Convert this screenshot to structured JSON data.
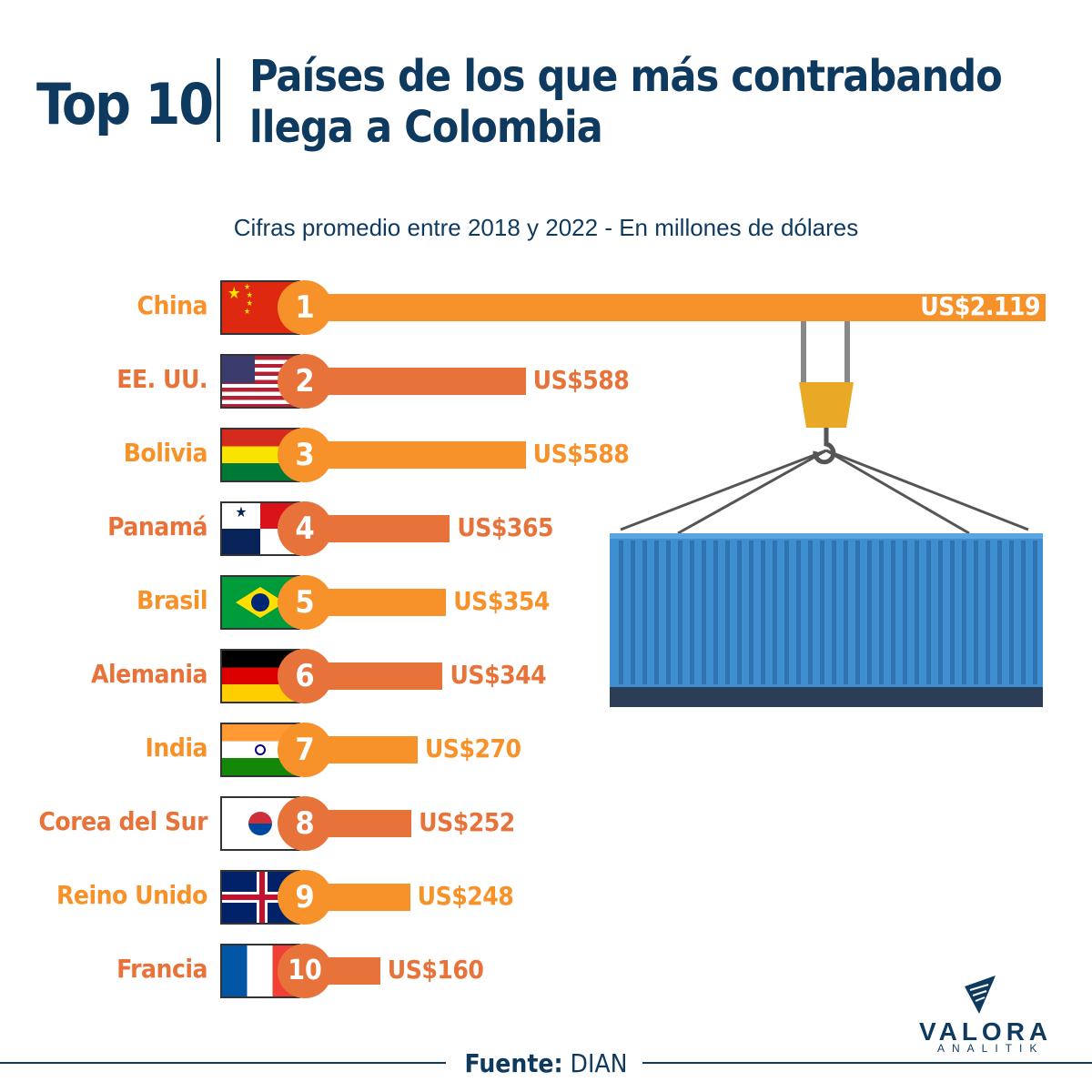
{
  "header": {
    "top": "Top 10",
    "title_line1": "Países de los que más contrabando",
    "title_line2": "llega a Colombia"
  },
  "chart_data": {
    "type": "bar",
    "orientation": "horizontal",
    "subtitle": "Cifras promedio entre 2018 y 2022 - En millones de dólares",
    "categories": [
      "China",
      "EE. UU.",
      "Bolivia",
      "Panamá",
      "Brasil",
      "Alemania",
      "India",
      "Corea del Sur",
      "Reino Unido",
      "Francia"
    ],
    "ranks": [
      "1",
      "2",
      "3",
      "4",
      "5",
      "6",
      "7",
      "8",
      "9",
      "10"
    ],
    "values": [
      2119,
      588,
      588,
      365,
      354,
      344,
      270,
      252,
      248,
      160
    ],
    "value_labels": [
      "US$2.119",
      "US$588",
      "US$588",
      "US$365",
      "US$354",
      "US$344",
      "US$270",
      "US$252",
      "US$248",
      "US$160"
    ],
    "colors": [
      "#f7922a",
      "#e8733a"
    ],
    "grid": false
  },
  "footer": {
    "source_label": "Fuente:",
    "source_value": "DIAN"
  },
  "logo": {
    "name": "VALORA",
    "sub": "ANALITIK"
  }
}
